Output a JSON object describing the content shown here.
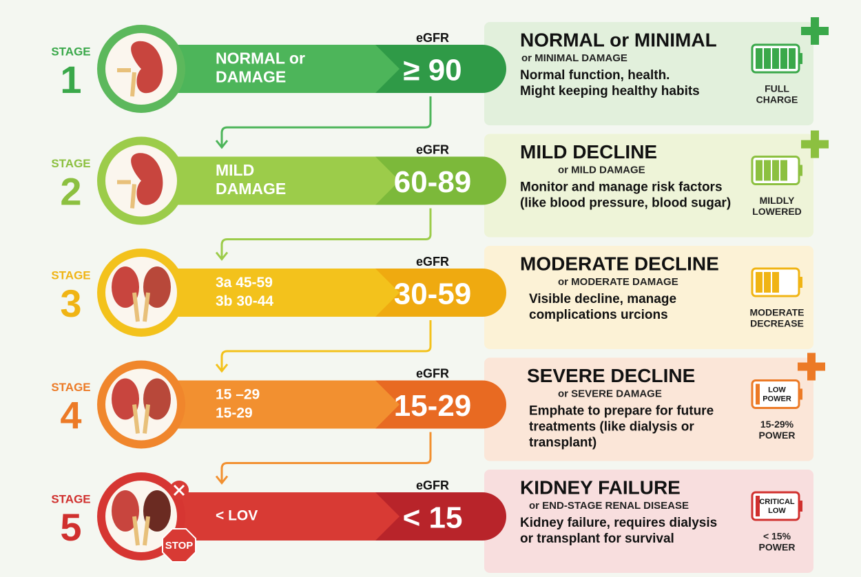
{
  "stages": [
    {
      "stage_label": "STAGE",
      "number": "1",
      "band_lines": [
        "NORMAL or",
        "DAMAGE"
      ],
      "egfr_label": "eGFR",
      "egfr_value": "≥ 90",
      "title": "NORMAL or MINIMAL",
      "subtitle": "or MINIMAL DAMAGE",
      "description": [
        "Normal function, health.",
        "Might keeping healthy habits"
      ],
      "status": [
        "FULL",
        "CHARGE"
      ]
    },
    {
      "stage_label": "STAGE",
      "number": "2",
      "band_lines": [
        "MILD",
        "DAMAGE"
      ],
      "egfr_label": "eGFR",
      "egfr_value": "60-89",
      "title": "MILD DECLINE",
      "subtitle": "or MILD DAMAGE",
      "description": [
        "Monitor and manage risk factors",
        "(like blood pressure, blood sugar)"
      ],
      "status": [
        "MILDLY",
        "LOWERED"
      ]
    },
    {
      "stage_label": "STAGE",
      "number": "3",
      "band_lines": [
        "3a 45-59",
        "3b 30-44"
      ],
      "egfr_label": "eGFR",
      "egfr_value": "30-59",
      "title": "MODERATE DECLINE",
      "subtitle": "or MODERATE DAMAGE",
      "description": [
        "Visible decline, manage",
        "complications urcions"
      ],
      "status": [
        "MODERATE",
        "DECREASE"
      ]
    },
    {
      "stage_label": "STAGE",
      "number": "4",
      "band_lines": [
        "15 –29",
        "15-29"
      ],
      "egfr_label": "eGFR",
      "egfr_value": "15-29",
      "title": "SEVERE DECLINE",
      "subtitle": "or SEVERE DAMAGE",
      "description": [
        "Emphate to prepare for future",
        "treatments (like dialysis or",
        "transplant)"
      ],
      "battery_label": [
        "LOW",
        "POWER"
      ],
      "status": [
        "15-29%",
        "POWER"
      ]
    },
    {
      "stage_label": "STAGE",
      "number": "5",
      "band_lines": [
        "< LOV"
      ],
      "egfr_label": "eGFR",
      "egfr_value": "< 15",
      "title": "KIDNEY FAILURE",
      "subtitle": "or END-STAGE RENAL DISEASE",
      "description": [
        "Kidney failure, requires dialysis",
        "or transplant for survival"
      ],
      "battery_label": [
        "CRITICAL",
        "LOW"
      ],
      "status": [
        "< 15%",
        "POWER"
      ],
      "sign": "STOP"
    }
  ]
}
